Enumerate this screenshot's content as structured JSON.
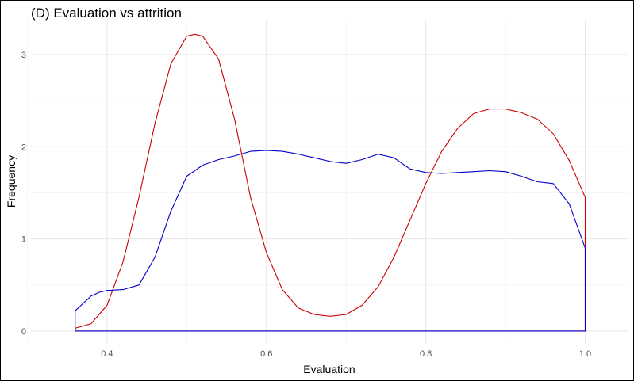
{
  "chart_data": {
    "type": "area",
    "title": "(D) Evaluation vs attrition",
    "xlabel": "Evaluation",
    "ylabel": "Frequency",
    "xlim": [
      0.36,
      1.0
    ],
    "ylim": [
      0,
      3.25
    ],
    "x_ticks": [
      "0.4",
      "0.6",
      "0.8",
      "1.0"
    ],
    "y_ticks": [
      "0",
      "1",
      "2",
      "3"
    ],
    "grid": true,
    "series": [
      {
        "color": "#cc0000",
        "points": [
          [
            0.36,
            0.03
          ],
          [
            0.38,
            0.08
          ],
          [
            0.4,
            0.28
          ],
          [
            0.42,
            0.75
          ],
          [
            0.44,
            1.45
          ],
          [
            0.46,
            2.25
          ],
          [
            0.48,
            2.9
          ],
          [
            0.5,
            3.2
          ],
          [
            0.51,
            3.22
          ],
          [
            0.52,
            3.2
          ],
          [
            0.54,
            2.95
          ],
          [
            0.56,
            2.3
          ],
          [
            0.58,
            1.45
          ],
          [
            0.6,
            0.85
          ],
          [
            0.62,
            0.45
          ],
          [
            0.64,
            0.25
          ],
          [
            0.66,
            0.18
          ],
          [
            0.68,
            0.16
          ],
          [
            0.7,
            0.18
          ],
          [
            0.72,
            0.28
          ],
          [
            0.74,
            0.48
          ],
          [
            0.76,
            0.8
          ],
          [
            0.78,
            1.2
          ],
          [
            0.8,
            1.6
          ],
          [
            0.82,
            1.95
          ],
          [
            0.84,
            2.2
          ],
          [
            0.86,
            2.36
          ],
          [
            0.88,
            2.41
          ],
          [
            0.9,
            2.41
          ],
          [
            0.92,
            2.37
          ],
          [
            0.94,
            2.3
          ],
          [
            0.96,
            2.14
          ],
          [
            0.98,
            1.85
          ],
          [
            1.0,
            1.45
          ]
        ]
      },
      {
        "color": "#0000cc",
        "points": [
          [
            0.36,
            0.22
          ],
          [
            0.37,
            0.3
          ],
          [
            0.38,
            0.38
          ],
          [
            0.39,
            0.42
          ],
          [
            0.4,
            0.44
          ],
          [
            0.42,
            0.45
          ],
          [
            0.44,
            0.5
          ],
          [
            0.46,
            0.8
          ],
          [
            0.48,
            1.3
          ],
          [
            0.5,
            1.68
          ],
          [
            0.52,
            1.8
          ],
          [
            0.54,
            1.86
          ],
          [
            0.56,
            1.9
          ],
          [
            0.58,
            1.95
          ],
          [
            0.6,
            1.96
          ],
          [
            0.62,
            1.95
          ],
          [
            0.64,
            1.92
          ],
          [
            0.66,
            1.88
          ],
          [
            0.68,
            1.84
          ],
          [
            0.7,
            1.82
          ],
          [
            0.72,
            1.86
          ],
          [
            0.74,
            1.92
          ],
          [
            0.76,
            1.88
          ],
          [
            0.78,
            1.76
          ],
          [
            0.8,
            1.72
          ],
          [
            0.82,
            1.71
          ],
          [
            0.84,
            1.72
          ],
          [
            0.86,
            1.73
          ],
          [
            0.88,
            1.74
          ],
          [
            0.9,
            1.73
          ],
          [
            0.92,
            1.68
          ],
          [
            0.94,
            1.62
          ],
          [
            0.96,
            1.6
          ],
          [
            0.98,
            1.38
          ],
          [
            1.0,
            0.9
          ]
        ]
      }
    ]
  }
}
